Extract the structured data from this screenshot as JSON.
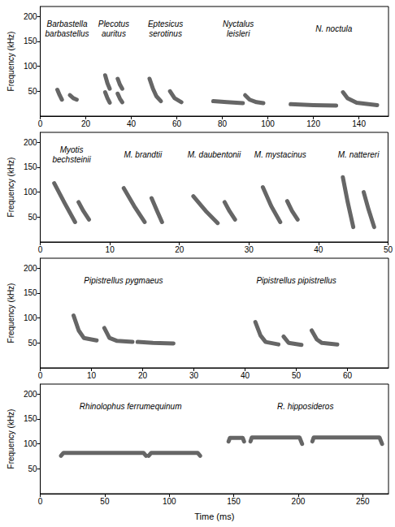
{
  "chart_data": [
    {
      "type": "line",
      "ylabel": "Frequency (kHz)",
      "xlim": [
        0,
        153
      ],
      "xticks": [
        0,
        20,
        40,
        60,
        80,
        100,
        120,
        140
      ],
      "ylim": [
        0,
        220
      ],
      "yticks": [
        50,
        100,
        150,
        200
      ],
      "series": [
        {
          "name": "Barbastella barbastellus",
          "color": "#555555",
          "x": [
            7.5,
            8.5,
            9.5,
            null,
            13,
            14.5,
            16
          ],
          "values": [
            53,
            42,
            33,
            null,
            42,
            36,
            33
          ]
        },
        {
          "name": "Plecotus auritus",
          "color": "#555555",
          "x": [
            28.5,
            29.5,
            30.5,
            null,
            28.5,
            29.5,
            30.5,
            null,
            34,
            35,
            36,
            null,
            34,
            35,
            36
          ],
          "values": [
            82,
            66,
            55,
            null,
            48,
            36,
            27,
            null,
            75,
            63,
            55,
            null,
            45,
            35,
            28
          ]
        },
        {
          "name": "Eptesicus serotinus",
          "color": "#555555",
          "x": [
            48,
            49.5,
            51,
            53,
            null,
            57,
            59,
            62
          ],
          "values": [
            75,
            55,
            40,
            30,
            null,
            50,
            36,
            28
          ]
        },
        {
          "name": "Nyctalus leisleri",
          "color": "#555555",
          "x": [
            76,
            82,
            89,
            null,
            90,
            92,
            95,
            98
          ],
          "values": [
            30,
            28,
            26,
            null,
            42,
            33,
            28,
            26
          ]
        },
        {
          "name": "N. noctula",
          "color": "#555555",
          "x": [
            110,
            120,
            130,
            null,
            133,
            135,
            139,
            148
          ],
          "values": [
            24,
            22,
            21,
            null,
            48,
            36,
            27,
            22
          ]
        }
      ]
    },
    {
      "type": "line",
      "ylabel": "Frequency (kHz)",
      "xlim": [
        0,
        50
      ],
      "xticks": [
        0,
        10,
        20,
        30,
        40,
        50
      ],
      "ylim": [
        0,
        220
      ],
      "yticks": [
        50,
        100,
        150,
        200
      ],
      "series": [
        {
          "name": "Myotis bechsteinii",
          "color": "#555555",
          "x": [
            2,
            3.5,
            5,
            null,
            5.5,
            6.2,
            7
          ],
          "values": [
            118,
            78,
            40,
            null,
            80,
            62,
            45
          ]
        },
        {
          "name": "M. brandtii",
          "color": "#555555",
          "x": [
            12,
            13.5,
            15,
            null,
            16,
            16.8,
            17.5
          ],
          "values": [
            108,
            72,
            40,
            null,
            88,
            62,
            40
          ]
        },
        {
          "name": "M. daubentonii",
          "color": "#555555",
          "x": [
            22,
            23.8,
            25.5,
            null,
            26.5,
            27.2,
            28
          ],
          "values": [
            92,
            62,
            38,
            null,
            80,
            62,
            45
          ]
        },
        {
          "name": "M. mystacinus",
          "color": "#555555",
          "x": [
            32,
            33.2,
            34.5,
            null,
            35.5,
            36.2,
            37
          ],
          "values": [
            110,
            72,
            40,
            null,
            82,
            62,
            45
          ]
        },
        {
          "name": "M. nattereri",
          "color": "#555555",
          "x": [
            43.5,
            44.2,
            45,
            null,
            46.5,
            47.2,
            48
          ],
          "values": [
            130,
            80,
            30,
            null,
            100,
            65,
            30
          ]
        }
      ]
    },
    {
      "type": "line",
      "ylabel": "Frequency (kHz)",
      "xlim": [
        0,
        68
      ],
      "xticks": [
        0,
        10,
        20,
        30,
        40,
        50,
        60
      ],
      "ylim": [
        0,
        220
      ],
      "yticks": [
        50,
        100,
        150,
        200
      ],
      "series": [
        {
          "name": "Pipistrellus pygmaeus",
          "color": "#555555",
          "x": [
            6.5,
            7.5,
            8.5,
            11,
            null,
            12.5,
            13.5,
            15,
            18,
            null,
            19,
            22,
            26
          ],
          "values": [
            105,
            75,
            60,
            55,
            null,
            80,
            60,
            54,
            52,
            null,
            52,
            50,
            49
          ]
        },
        {
          "name": "Pipistrellus pipistrellus",
          "color": "#555555",
          "x": [
            42,
            43,
            44,
            46.5,
            null,
            47.5,
            48.5,
            51,
            null,
            53,
            54,
            55,
            58
          ],
          "values": [
            92,
            65,
            52,
            47,
            null,
            63,
            50,
            46,
            null,
            75,
            57,
            50,
            47
          ]
        }
      ]
    },
    {
      "type": "line",
      "ylabel": "Frequency (kHz)",
      "xlabel": "Time (ms)",
      "xlim": [
        0,
        270
      ],
      "xticks": [
        0,
        50,
        100,
        150,
        200,
        250
      ],
      "ylim": [
        0,
        220
      ],
      "yticks": [
        50,
        100,
        150,
        200
      ],
      "series": [
        {
          "name": "Rhinolophus ferrumequinum",
          "color": "#555555",
          "x": [
            16,
            18,
            80,
            82,
            null,
            84,
            86,
            122,
            124
          ],
          "values": [
            76,
            82,
            82,
            76,
            null,
            76,
            82,
            82,
            76
          ]
        },
        {
          "name": "R. hipposideros",
          "color": "#555555",
          "x": [
            146,
            147,
            157,
            158,
            null,
            163,
            164,
            201,
            203,
            null,
            211,
            212,
            263,
            265
          ],
          "values": [
            105,
            112,
            112,
            105,
            null,
            105,
            113,
            113,
            100,
            null,
            105,
            113,
            113,
            100
          ]
        }
      ]
    }
  ]
}
